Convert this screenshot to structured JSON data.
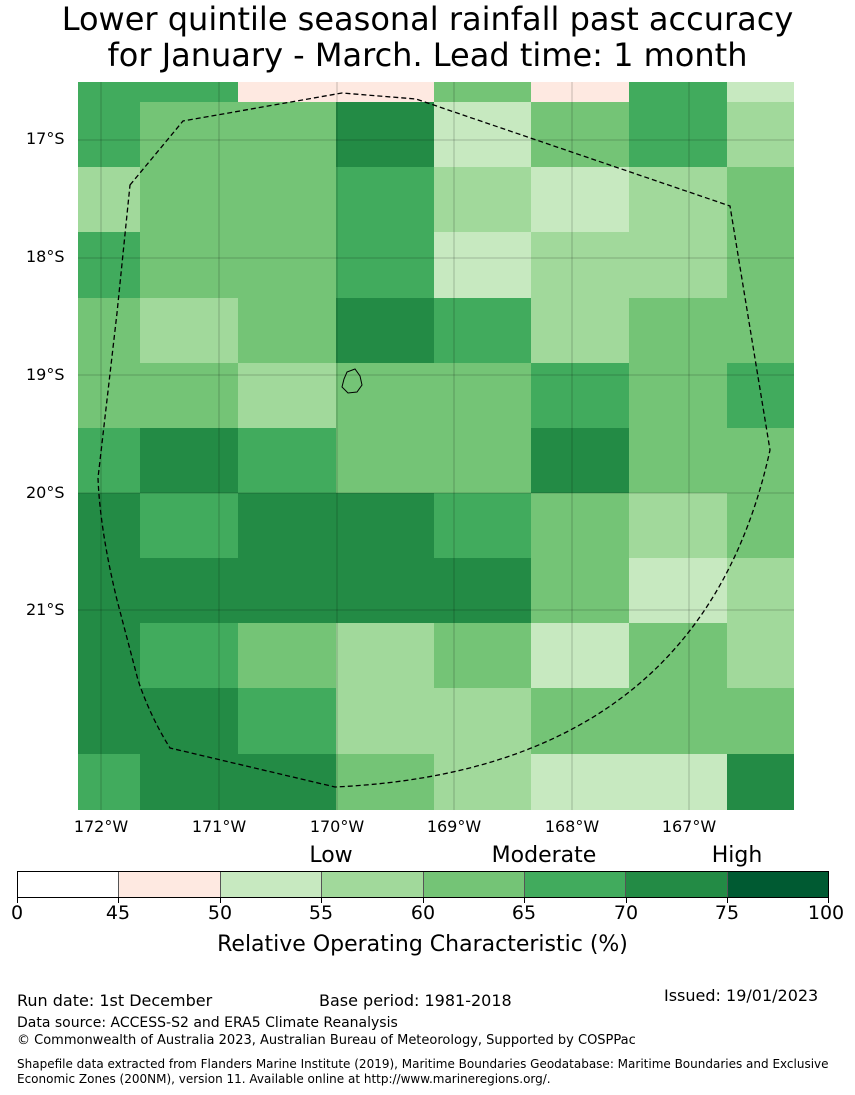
{
  "title_line1": "Lower quintile seasonal rainfall past accuracy",
  "title_line2": "for January - March. Lead time: 1 month",
  "map": {
    "lat_labels": [
      "17°S",
      "18°S",
      "19°S",
      "20°S",
      "21°S"
    ],
    "lon_labels": [
      "172°W",
      "171°W",
      "170°W",
      "169°W",
      "168°W",
      "167°W"
    ],
    "grid_levels": [
      [
        5,
        5,
        1,
        1,
        4,
        1,
        5,
        2
      ],
      [
        5,
        4,
        4,
        6,
        2,
        4,
        5,
        3
      ],
      [
        3,
        4,
        4,
        5,
        3,
        2,
        3,
        4
      ],
      [
        5,
        4,
        4,
        5,
        2,
        3,
        3,
        4
      ],
      [
        4,
        3,
        4,
        6,
        5,
        3,
        4,
        4
      ],
      [
        4,
        4,
        3,
        4,
        4,
        5,
        4,
        5
      ],
      [
        5,
        6,
        5,
        4,
        4,
        6,
        4,
        4
      ],
      [
        6,
        5,
        6,
        6,
        5,
        4,
        3,
        4
      ],
      [
        6,
        6,
        6,
        6,
        6,
        4,
        2,
        3
      ],
      [
        6,
        5,
        4,
        3,
        4,
        2,
        4,
        3
      ],
      [
        6,
        6,
        5,
        3,
        3,
        4,
        4,
        4
      ],
      [
        5,
        6,
        6,
        4,
        3,
        2,
        2,
        6
      ]
    ]
  },
  "colorbar": {
    "categories": [
      "Low",
      "Moderate",
      "High"
    ],
    "ticks": [
      "0",
      "45",
      "50",
      "55",
      "60",
      "65",
      "70",
      "75",
      "100"
    ],
    "colors": [
      "#ffffff",
      "#fee9e1",
      "#c7e9c0",
      "#a1d99b",
      "#74c476",
      "#41ab5d",
      "#238b45",
      "#005a32"
    ],
    "label": "Relative Operating Characteristic (%)"
  },
  "footer": {
    "run_date": "Run date: 1st December",
    "base_period": "Base period: 1981-2018",
    "issued": "Issued: 19/01/2023",
    "data_source": "Data source: ACCESS-S2 and ERA5 Climate Reanalysis",
    "copyright": "© Commonwealth of Australia 2023, Australian Bureau of Meteorology, Supported by COSPPac",
    "shapefile": "Shapefile data extracted from Flanders Marine Institute (2019), Maritime Boundaries Geodatabase: Maritime Boundaries and Exclusive Economic Zones (200NM), version 11. Available online at http://www.marineregions.org/."
  }
}
